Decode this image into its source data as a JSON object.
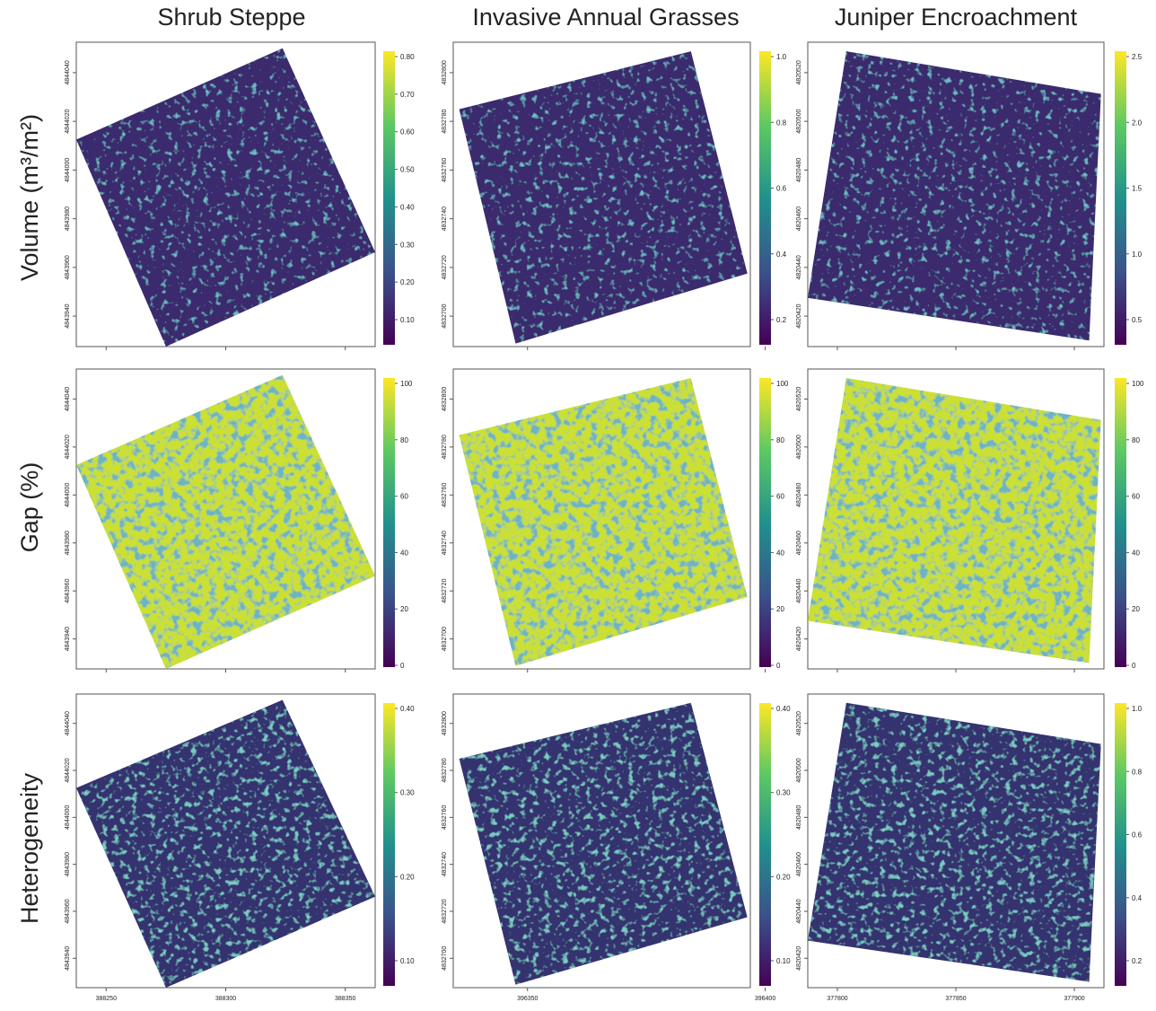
{
  "columns": [
    {
      "title": "Shrub Steppe",
      "yticks": [
        4843940,
        4843960,
        4843980,
        4844000,
        4844020,
        4844040
      ],
      "xticks": [
        388250,
        388300,
        388350
      ]
    },
    {
      "title": "Invasive Annual Grasses",
      "yticks": [
        4832700,
        4832720,
        4832740,
        4832760,
        4832780,
        4832800
      ],
      "xticks": [
        396350,
        396400
      ]
    },
    {
      "title": "Juniper Encroachment",
      "yticks": [
        4820420,
        4820440,
        4820460,
        4820480,
        4820500,
        4820520
      ],
      "xticks": [
        377800,
        377850,
        377900
      ]
    }
  ],
  "rows": [
    {
      "label": "Volume (m³/m²)",
      "colorbars": [
        [
          "0.10",
          "0.20",
          "0.30",
          "0.40",
          "0.50",
          "0.60",
          "0.70",
          "0.80"
        ],
        [
          "0.2",
          "0.4",
          "0.6",
          "0.8",
          "1.0"
        ],
        [
          "0.5",
          "1.0",
          "1.5",
          "2.0",
          "2.5"
        ]
      ]
    },
    {
      "label": "Gap (%)",
      "colorbars": [
        [
          "0",
          "20",
          "40",
          "60",
          "80",
          "100"
        ],
        [
          "0",
          "20",
          "40",
          "60",
          "80",
          "100"
        ],
        [
          "0",
          "20",
          "40",
          "60",
          "80",
          "100"
        ]
      ]
    },
    {
      "label": "Heterogeneity",
      "colorbars": [
        [
          "0.10",
          "0.20",
          "0.30",
          "0.40"
        ],
        [
          "0.10",
          "0.20",
          "0.30",
          "0.40"
        ],
        [
          "0.2",
          "0.4",
          "0.6",
          "0.8",
          "1.0"
        ]
      ]
    }
  ]
}
